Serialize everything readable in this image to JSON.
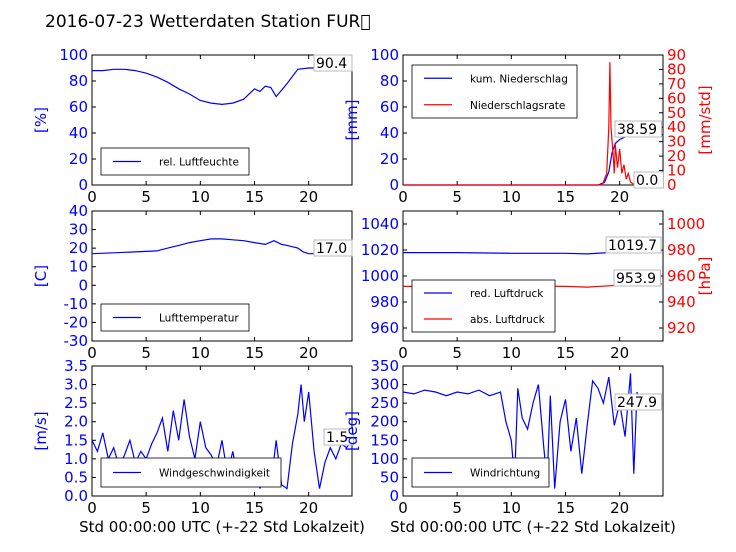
{
  "title": "2016-07-23 Wetterdaten Station FUR\u0000",
  "x_label": "Std 00:00:00 UTC (+-22 Std Lokalzeit)",
  "colors": {
    "left_axis": "#0000ff",
    "right_axis": "#ff0000",
    "text": "#000000"
  },
  "chart_data": [
    {
      "type": "line",
      "panel": "top-left",
      "ylabel": "[%]",
      "ylim": [
        0,
        100
      ],
      "xlim": [
        0,
        24
      ],
      "yticks": [
        0,
        20,
        40,
        60,
        80,
        100
      ],
      "xticks": [
        0,
        5,
        10,
        15,
        20
      ],
      "legend": [
        "rel. Luftfeuchte"
      ],
      "legend_position": "bottom-left",
      "last_value_label": "90.4",
      "series": [
        {
          "name": "rel. Luftfeuchte",
          "color": "#0000ff",
          "x": [
            0,
            1,
            2,
            3,
            4,
            5,
            6,
            7,
            8,
            9,
            10,
            11,
            12,
            13,
            14,
            15,
            15.5,
            16,
            16.5,
            17,
            18,
            19,
            20,
            21,
            22,
            23.9
          ],
          "y": [
            88,
            88,
            89,
            89,
            88,
            86,
            83,
            79,
            74,
            70,
            65,
            63,
            62,
            63,
            66,
            74,
            72,
            76,
            75,
            68,
            78,
            89,
            90,
            90,
            90,
            90.4
          ]
        }
      ]
    },
    {
      "type": "line",
      "panel": "top-right",
      "ylabel": "[mm]",
      "ylim": [
        0,
        100
      ],
      "yticks": [
        0,
        20,
        40,
        60,
        80,
        100
      ],
      "y2label": "[mm/std]",
      "y2lim": [
        0,
        90
      ],
      "y2ticks": [
        0,
        10,
        20,
        30,
        40,
        50,
        60,
        70,
        80,
        90
      ],
      "xlim": [
        0,
        24
      ],
      "xticks": [
        0,
        5,
        10,
        15,
        20
      ],
      "legend": [
        "kum. Niederschlag",
        "Niederschlagsrate"
      ],
      "legend_position": "top-left",
      "last_value_labels": [
        "38.59",
        "0.0"
      ],
      "series": [
        {
          "name": "kum. Niederschlag",
          "color": "#0000ff",
          "axis": "left",
          "x": [
            0,
            18,
            18.6,
            19,
            19.3,
            19.6,
            20,
            20.5,
            21,
            24
          ],
          "y": [
            0,
            0,
            2,
            10,
            25,
            32,
            35,
            37,
            38.59,
            38.59
          ]
        },
        {
          "name": "Niederschlagsrate",
          "color": "#ff0000",
          "axis": "right",
          "x": [
            0,
            18.4,
            18.8,
            19,
            19.1,
            19.2,
            19.4,
            19.5,
            19.6,
            19.8,
            20,
            20.2,
            20.4,
            20.6,
            20.8,
            21,
            21.4,
            24
          ],
          "y": [
            0,
            0,
            8,
            40,
            85,
            40,
            20,
            8,
            28,
            12,
            25,
            8,
            14,
            4,
            8,
            2,
            0,
            0
          ]
        }
      ]
    },
    {
      "type": "line",
      "panel": "middle-left",
      "ylabel": "[C]",
      "ylim": [
        -30,
        40
      ],
      "yticks": [
        -30,
        -20,
        -10,
        0,
        10,
        20,
        30,
        40
      ],
      "xlim": [
        0,
        24
      ],
      "xticks": [
        0,
        5,
        10,
        15,
        20
      ],
      "legend": [
        "Lufttemperatur"
      ],
      "legend_position": "bottom-left",
      "last_value_label": "17.0",
      "series": [
        {
          "name": "Lufttemperatur",
          "color": "#0000ff",
          "x": [
            0,
            2,
            4,
            6,
            7,
            8,
            9,
            10,
            11,
            12,
            13,
            14,
            15,
            16,
            16.8,
            17.5,
            18,
            19,
            19.5,
            20,
            21,
            23.9
          ],
          "y": [
            17,
            17.5,
            18,
            18.5,
            20,
            21.5,
            23,
            24,
            25,
            25,
            24.5,
            24,
            23,
            22,
            24,
            22,
            21.5,
            20,
            18,
            17,
            17,
            17
          ]
        }
      ]
    },
    {
      "type": "line",
      "panel": "middle-right",
      "ylim": [
        950,
        1050
      ],
      "yticks": [
        960,
        980,
        1000,
        1020,
        1040
      ],
      "y2label": "[hPa]",
      "y2lim": [
        910,
        1010
      ],
      "y2ticks": [
        920,
        940,
        960,
        980,
        1000
      ],
      "xlim": [
        0,
        24
      ],
      "xticks": [
        0,
        5,
        10,
        15,
        20
      ],
      "legend": [
        "red. Luftdruck",
        "abs. Luftdruck"
      ],
      "legend_position": "bottom-left",
      "last_value_labels": [
        "1019.7",
        "953.9"
      ],
      "series": [
        {
          "name": "red. Luftdruck",
          "color": "#0000ff",
          "x": [
            0,
            5,
            10,
            15,
            17,
            19,
            21,
            23.9
          ],
          "y": [
            1018,
            1018,
            1017.5,
            1017.5,
            1017,
            1018,
            1019.5,
            1019.7
          ]
        },
        {
          "name": "abs. Luftdruck",
          "color": "#ff0000",
          "x": [
            0,
            5,
            10,
            15,
            17,
            19,
            21,
            23.9
          ],
          "y": [
            952,
            952,
            952.5,
            952,
            951.5,
            952.5,
            953.5,
            953.9
          ]
        }
      ]
    },
    {
      "type": "line",
      "panel": "bottom-left",
      "ylabel": "[m/s]",
      "ylim": [
        0,
        3.5
      ],
      "yticks": [
        "0.0",
        "0.5",
        "1.0",
        "1.5",
        "2.0",
        "2.5",
        "3.0",
        "3.5"
      ],
      "xlim": [
        0,
        24
      ],
      "xticks": [
        0,
        5,
        10,
        15,
        20
      ],
      "legend": [
        "Windgeschwindigkeit"
      ],
      "legend_position": "bottom-left",
      "last_value_label": "1.5",
      "series": [
        {
          "name": "Windgeschwindigkeit",
          "color": "#0000ff",
          "x": [
            0,
            0.5,
            1,
            1.5,
            2,
            2.5,
            3,
            3.5,
            4,
            4.5,
            5,
            5.5,
            6,
            6.5,
            7,
            7.5,
            8,
            8.5,
            9,
            9.5,
            10,
            10.5,
            11,
            11.5,
            12,
            12.5,
            13,
            13.5,
            14,
            14.5,
            15,
            15.5,
            16,
            16.5,
            17,
            17.5,
            18,
            18.5,
            19,
            19.3,
            19.6,
            20,
            20.5,
            21,
            21.5,
            22,
            22.5,
            23,
            23.5,
            24
          ],
          "y": [
            1.5,
            1.2,
            1.7,
            1.0,
            1.3,
            0.8,
            1.1,
            1.5,
            0.9,
            1.2,
            1.0,
            1.4,
            1.7,
            2.1,
            1.2,
            2.3,
            1.5,
            2.6,
            1.6,
            1.0,
            2.0,
            1.3,
            1.1,
            0.8,
            1.5,
            0.6,
            1.2,
            0.4,
            1.0,
            0.3,
            0.9,
            0.2,
            0.8,
            0.3,
            1.5,
            0.3,
            0.2,
            1.4,
            2.2,
            3.0,
            2.0,
            2.8,
            1.2,
            0.2,
            0.9,
            1.3,
            1.0,
            1.4,
            1.3,
            1.5
          ]
        }
      ]
    },
    {
      "type": "line",
      "panel": "bottom-right",
      "ylabel": "[deg]",
      "ylim": [
        0,
        350
      ],
      "yticks": [
        0,
        50,
        100,
        150,
        200,
        250,
        300,
        350
      ],
      "xlim": [
        0,
        24
      ],
      "xticks": [
        0,
        5,
        10,
        15,
        20
      ],
      "legend": [
        "Windrichtung"
      ],
      "legend_position": "bottom-left",
      "last_value_label": "247.9",
      "series": [
        {
          "name": "Windrichtung",
          "color": "#0000ff",
          "x": [
            0,
            1,
            2,
            3,
            4,
            5,
            6,
            7,
            8,
            9,
            9.5,
            10,
            10.3,
            10.6,
            11,
            11.5,
            12,
            12.5,
            13,
            13.3,
            13.6,
            14,
            14.5,
            15,
            15.5,
            16,
            16.5,
            17,
            17.5,
            18,
            18.5,
            19,
            19.5,
            20,
            20.5,
            21,
            21.3,
            21.6,
            22,
            23,
            23.9
          ],
          "y": [
            280,
            275,
            285,
            280,
            270,
            280,
            275,
            285,
            270,
            280,
            200,
            150,
            40,
            290,
            210,
            180,
            250,
            300,
            130,
            40,
            270,
            20,
            200,
            260,
            120,
            210,
            60,
            190,
            310,
            290,
            250,
            320,
            190,
            250,
            160,
            330,
            60,
            280,
            240,
            270,
            247.9
          ]
        }
      ]
    }
  ]
}
